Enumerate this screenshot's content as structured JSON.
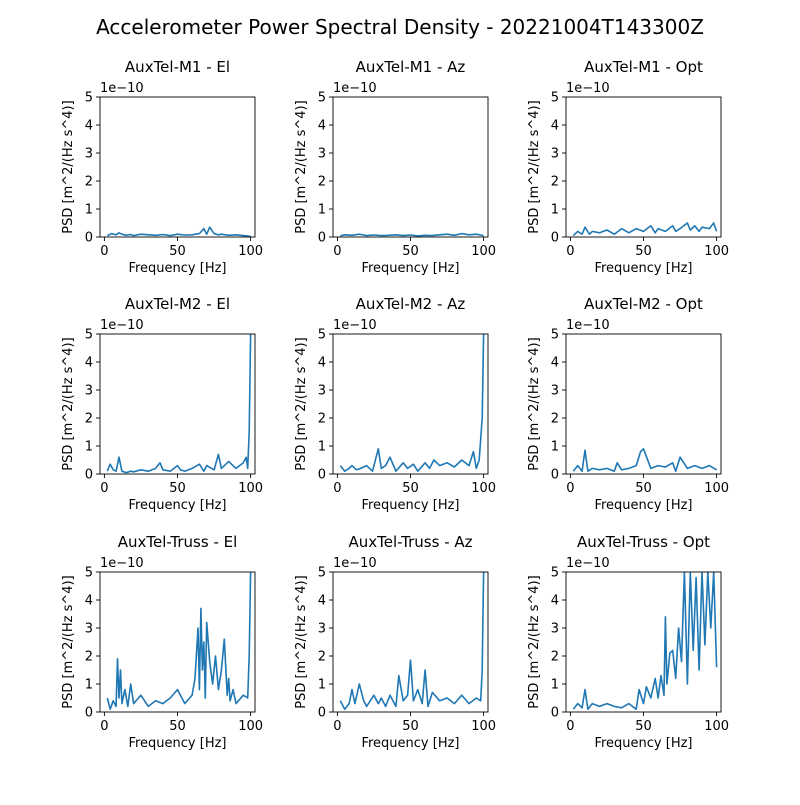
{
  "figure": {
    "suptitle": "Accelerometer Power Spectral Density - 20221004T143300Z"
  },
  "colors": {
    "line": "#1f77b4",
    "axes": "#000000"
  },
  "chart_data": [
    {
      "type": "line",
      "title": "AuxTel-M1 - El",
      "xlabel": "Frequency [Hz]",
      "ylabel": "PSD [m^2/(Hz s^4)]",
      "y_offset_label": "1e−10",
      "xlim": [
        -3,
        103
      ],
      "ylim": [
        0,
        5
      ],
      "xticks": [
        0,
        50,
        100
      ],
      "yticks": [
        0,
        1,
        2,
        3,
        4,
        5
      ],
      "x": [
        2,
        5,
        8,
        10,
        12,
        15,
        18,
        20,
        25,
        30,
        35,
        40,
        45,
        50,
        55,
        60,
        65,
        68,
        70,
        72,
        75,
        78,
        80,
        85,
        90,
        95,
        100
      ],
      "series": [
        {
          "values": [
            0.05,
            0.12,
            0.08,
            0.15,
            0.1,
            0.06,
            0.09,
            0.05,
            0.1,
            0.08,
            0.06,
            0.09,
            0.05,
            0.1,
            0.07,
            0.08,
            0.12,
            0.3,
            0.1,
            0.35,
            0.12,
            0.08,
            0.1,
            0.06,
            0.08,
            0.05,
            0.02
          ]
        }
      ]
    },
    {
      "type": "line",
      "title": "AuxTel-M1 - Az",
      "xlabel": "Frequency [Hz]",
      "ylabel": "PSD [m^2/(Hz s^4)]",
      "y_offset_label": "1e−10",
      "xlim": [
        -3,
        103
      ],
      "ylim": [
        0,
        5
      ],
      "xticks": [
        0,
        50,
        100
      ],
      "yticks": [
        0,
        1,
        2,
        3,
        4,
        5
      ],
      "x": [
        2,
        5,
        10,
        15,
        20,
        25,
        30,
        35,
        40,
        45,
        50,
        55,
        60,
        65,
        70,
        75,
        80,
        85,
        90,
        95,
        100
      ],
      "series": [
        {
          "values": [
            0.04,
            0.08,
            0.06,
            0.1,
            0.05,
            0.07,
            0.05,
            0.06,
            0.08,
            0.05,
            0.07,
            0.04,
            0.06,
            0.05,
            0.08,
            0.1,
            0.06,
            0.12,
            0.08,
            0.1,
            0.05
          ]
        }
      ]
    },
    {
      "type": "line",
      "title": "AuxTel-M1 - Opt",
      "xlabel": "Frequency [Hz]",
      "ylabel": "PSD [m^2/(Hz s^4)]",
      "y_offset_label": "1e−10",
      "xlim": [
        -3,
        103
      ],
      "ylim": [
        0,
        5
      ],
      "xticks": [
        0,
        50,
        100
      ],
      "yticks": [
        0,
        1,
        2,
        3,
        4,
        5
      ],
      "x": [
        2,
        5,
        8,
        10,
        13,
        15,
        20,
        25,
        30,
        35,
        40,
        45,
        50,
        55,
        58,
        60,
        65,
        70,
        72,
        75,
        80,
        82,
        85,
        88,
        90,
        95,
        98,
        100
      ],
      "series": [
        {
          "values": [
            0.05,
            0.2,
            0.1,
            0.35,
            0.1,
            0.2,
            0.15,
            0.25,
            0.1,
            0.3,
            0.15,
            0.3,
            0.2,
            0.4,
            0.15,
            0.3,
            0.2,
            0.4,
            0.2,
            0.3,
            0.5,
            0.25,
            0.4,
            0.2,
            0.35,
            0.3,
            0.5,
            0.2
          ]
        }
      ]
    },
    {
      "type": "line",
      "title": "AuxTel-M2 - El",
      "xlabel": "Frequency [Hz]",
      "ylabel": "PSD [m^2/(Hz s^4)]",
      "y_offset_label": "1e−10",
      "xlim": [
        -3,
        103
      ],
      "ylim": [
        0,
        5
      ],
      "xticks": [
        0,
        50,
        100
      ],
      "yticks": [
        0,
        1,
        2,
        3,
        4,
        5
      ],
      "x": [
        2,
        4,
        6,
        8,
        10,
        12,
        15,
        18,
        20,
        25,
        30,
        35,
        38,
        40,
        45,
        50,
        52,
        55,
        60,
        65,
        68,
        70,
        75,
        78,
        80,
        85,
        90,
        95,
        97,
        98,
        99,
        100
      ],
      "series": [
        {
          "values": [
            0.1,
            0.35,
            0.15,
            0.1,
            0.6,
            0.1,
            0.05,
            0.1,
            0.08,
            0.15,
            0.1,
            0.2,
            0.4,
            0.15,
            0.1,
            0.3,
            0.15,
            0.1,
            0.2,
            0.35,
            0.1,
            0.3,
            0.15,
            0.7,
            0.2,
            0.45,
            0.2,
            0.4,
            0.6,
            0.2,
            1.5,
            5.0
          ]
        }
      ]
    },
    {
      "type": "line",
      "title": "AuxTel-M2 - Az",
      "xlabel": "Frequency [Hz]",
      "ylabel": "PSD [m^2/(Hz s^4)]",
      "y_offset_label": "1e−10",
      "xlim": [
        -3,
        103
      ],
      "ylim": [
        0,
        5
      ],
      "xticks": [
        0,
        50,
        100
      ],
      "yticks": [
        0,
        1,
        2,
        3,
        4,
        5
      ],
      "x": [
        2,
        5,
        8,
        10,
        13,
        16,
        20,
        24,
        28,
        30,
        33,
        36,
        40,
        45,
        48,
        52,
        55,
        60,
        63,
        66,
        70,
        75,
        80,
        85,
        90,
        93,
        95,
        97,
        99,
        100
      ],
      "series": [
        {
          "values": [
            0.3,
            0.1,
            0.2,
            0.3,
            0.15,
            0.2,
            0.3,
            0.1,
            0.9,
            0.2,
            0.3,
            0.6,
            0.1,
            0.4,
            0.2,
            0.35,
            0.1,
            0.4,
            0.2,
            0.5,
            0.3,
            0.4,
            0.25,
            0.5,
            0.3,
            0.8,
            0.2,
            0.5,
            2.0,
            5.0
          ]
        }
      ]
    },
    {
      "type": "line",
      "title": "AuxTel-M2 - Opt",
      "xlabel": "Frequency [Hz]",
      "ylabel": "PSD [m^2/(Hz s^4)]",
      "y_offset_label": "1e−10",
      "xlim": [
        -3,
        103
      ],
      "ylim": [
        0,
        5
      ],
      "xticks": [
        0,
        50,
        100
      ],
      "yticks": [
        0,
        1,
        2,
        3,
        4,
        5
      ],
      "x": [
        2,
        5,
        8,
        10,
        12,
        15,
        20,
        25,
        30,
        32,
        35,
        40,
        45,
        48,
        50,
        55,
        60,
        65,
        70,
        72,
        75,
        80,
        85,
        90,
        95,
        100
      ],
      "series": [
        {
          "values": [
            0.1,
            0.3,
            0.1,
            0.85,
            0.1,
            0.2,
            0.15,
            0.2,
            0.1,
            0.4,
            0.15,
            0.2,
            0.3,
            0.8,
            0.9,
            0.2,
            0.3,
            0.25,
            0.4,
            0.1,
            0.6,
            0.2,
            0.3,
            0.2,
            0.3,
            0.15
          ]
        }
      ]
    },
    {
      "type": "line",
      "title": "AuxTel-Truss - El",
      "xlabel": "Frequency [Hz]",
      "ylabel": "PSD [m^2/(Hz s^4)]",
      "y_offset_label": "1e−10",
      "xlim": [
        -3,
        103
      ],
      "ylim": [
        0,
        5
      ],
      "xticks": [
        0,
        50,
        100
      ],
      "yticks": [
        0,
        1,
        2,
        3,
        4,
        5
      ],
      "x": [
        2,
        4,
        6,
        8,
        9,
        10,
        11,
        12,
        14,
        16,
        18,
        20,
        25,
        30,
        35,
        40,
        45,
        50,
        55,
        60,
        62,
        64,
        65,
        66,
        67,
        68,
        69,
        70,
        72,
        74,
        76,
        78,
        80,
        82,
        84,
        85,
        86,
        88,
        90,
        95,
        98,
        99,
        100
      ],
      "series": [
        {
          "values": [
            0.5,
            0.1,
            0.4,
            0.2,
            1.9,
            0.5,
            1.5,
            0.3,
            0.8,
            0.2,
            1.0,
            0.3,
            0.6,
            0.2,
            0.4,
            0.3,
            0.5,
            0.8,
            0.3,
            0.6,
            1.2,
            3.0,
            0.8,
            3.7,
            1.5,
            2.5,
            0.5,
            3.2,
            1.8,
            1.0,
            2.0,
            0.8,
            1.5,
            2.6,
            0.6,
            1.2,
            0.4,
            0.8,
            0.3,
            0.6,
            0.5,
            2.0,
            5.0
          ]
        }
      ]
    },
    {
      "type": "line",
      "title": "AuxTel-Truss - Az",
      "xlabel": "Frequency [Hz]",
      "ylabel": "PSD [m^2/(Hz s^4)]",
      "y_offset_label": "1e−10",
      "xlim": [
        -3,
        103
      ],
      "ylim": [
        0,
        5
      ],
      "xticks": [
        0,
        50,
        100
      ],
      "yticks": [
        0,
        1,
        2,
        3,
        4,
        5
      ],
      "x": [
        2,
        5,
        8,
        10,
        12,
        15,
        18,
        20,
        25,
        28,
        30,
        33,
        36,
        40,
        42,
        45,
        48,
        50,
        52,
        55,
        58,
        60,
        62,
        65,
        70,
        75,
        80,
        85,
        90,
        95,
        98,
        99,
        100
      ],
      "series": [
        {
          "values": [
            0.4,
            0.1,
            0.3,
            0.8,
            0.3,
            1.0,
            0.4,
            0.2,
            0.6,
            0.3,
            0.5,
            0.2,
            0.6,
            0.2,
            1.3,
            0.4,
            0.6,
            1.85,
            0.4,
            0.8,
            0.3,
            1.5,
            0.2,
            0.7,
            0.4,
            0.5,
            0.3,
            0.6,
            0.3,
            0.5,
            0.4,
            1.5,
            5.0
          ]
        }
      ]
    },
    {
      "type": "line",
      "title": "AuxTel-Truss - Opt",
      "xlabel": "Frequency [Hz]",
      "ylabel": "PSD [m^2/(Hz s^4)]",
      "y_offset_label": "1e−10",
      "xlim": [
        -3,
        103
      ],
      "ylim": [
        0,
        5
      ],
      "xticks": [
        0,
        50,
        100
      ],
      "yticks": [
        0,
        1,
        2,
        3,
        4,
        5
      ],
      "x": [
        2,
        5,
        8,
        10,
        12,
        15,
        20,
        25,
        30,
        35,
        40,
        45,
        47,
        50,
        52,
        55,
        58,
        60,
        62,
        64,
        65,
        66,
        68,
        70,
        72,
        74,
        76,
        78,
        80,
        82,
        84,
        86,
        88,
        90,
        92,
        94,
        96,
        98,
        100
      ],
      "series": [
        {
          "values": [
            0.1,
            0.3,
            0.15,
            0.8,
            0.1,
            0.3,
            0.2,
            0.3,
            0.2,
            0.15,
            0.3,
            0.1,
            0.8,
            0.3,
            0.9,
            0.5,
            1.2,
            0.5,
            1.3,
            0.6,
            3.4,
            1.0,
            2.1,
            2.2,
            1.2,
            3.0,
            1.8,
            5.0,
            1.0,
            5.0,
            2.2,
            4.8,
            1.5,
            5.0,
            2.4,
            5.0,
            3.0,
            5.0,
            1.6
          ]
        }
      ]
    }
  ]
}
